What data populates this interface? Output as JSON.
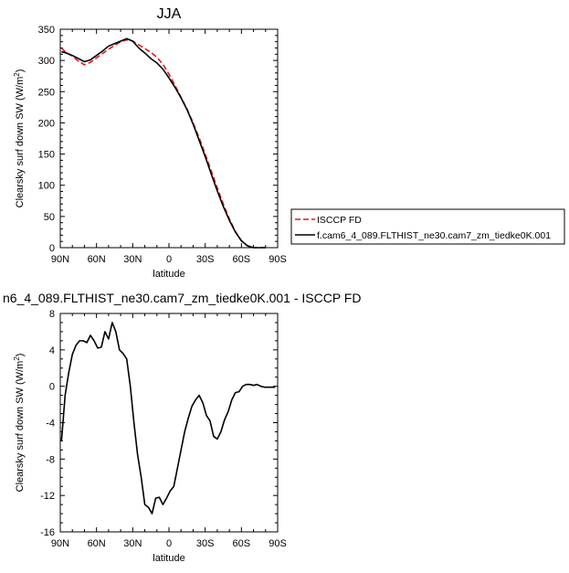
{
  "chart_data": [
    {
      "type": "line",
      "title": "JJA",
      "xlabel": "latitude",
      "ylabel": "Clearsky surf down SW (W/m",
      "ylabel_sup": "2",
      "ylabel_end": ")",
      "xlim": [
        90,
        -90
      ],
      "ylim": [
        0,
        350
      ],
      "x_ticks": [
        90,
        60,
        30,
        0,
        -30,
        -60,
        -90
      ],
      "x_tick_labels": [
        "90N",
        "60N",
        "30N",
        "0",
        "30S",
        "60S",
        "90S"
      ],
      "y_ticks": [
        0,
        50,
        100,
        150,
        200,
        250,
        300,
        350
      ],
      "y_tick_labels": [
        "0",
        "50",
        "100",
        "150",
        "200",
        "250",
        "300",
        "350"
      ],
      "grid": false,
      "legend": "right",
      "series": [
        {
          "name": "ISCCP FD",
          "color": "#e8141c",
          "dash": true,
          "x": [
            89,
            85,
            80,
            75,
            70,
            65,
            60,
            55,
            50,
            45,
            40,
            35,
            30,
            25,
            20,
            15,
            10,
            5,
            0,
            -5,
            -10,
            -15,
            -20,
            -25,
            -30,
            -35,
            -40,
            -45,
            -50,
            -55,
            -60,
            -65,
            -70,
            -75,
            -80
          ],
          "y": [
            320,
            312,
            307,
            299,
            293,
            297,
            304,
            311,
            318,
            324,
            330,
            333,
            331,
            325,
            319,
            313,
            305,
            294,
            278,
            260,
            241,
            222,
            200,
            176,
            150,
            123,
            96,
            70,
            46,
            26,
            11,
            3,
            0,
            0,
            0
          ]
        },
        {
          "name": "f.cam6_4_089.FLTHIST_ne30.cam7_zm_tiedke0K.001",
          "color": "#000000",
          "dash": false,
          "x": [
            89,
            85,
            80,
            75,
            70,
            65,
            60,
            55,
            50,
            45,
            40,
            35,
            30,
            25,
            20,
            15,
            10,
            5,
            0,
            -5,
            -10,
            -15,
            -20,
            -25,
            -30,
            -35,
            -40,
            -45,
            -50,
            -55,
            -60,
            -65,
            -70,
            -75,
            -80
          ],
          "y": [
            314,
            312,
            308,
            303,
            298,
            301,
            308,
            315,
            323,
            327,
            331,
            335,
            331,
            320,
            312,
            303,
            296,
            286,
            272,
            257,
            240,
            221,
            198,
            172,
            146,
            118,
            91,
            66,
            44,
            25,
            11,
            3,
            0,
            0,
            0
          ]
        }
      ]
    },
    {
      "type": "line",
      "title": "n6_4_089.FLTHIST_ne30.cam7_zm_tiedke0K.001 - ISCCP FD",
      "xlabel": "latitude",
      "ylabel": "Clearsky surf down SW (W/m",
      "ylabel_sup": "2",
      "ylabel_end": ")",
      "xlim": [
        90,
        -90
      ],
      "ylim": [
        -16,
        8
      ],
      "x_ticks": [
        90,
        60,
        30,
        0,
        -30,
        -60,
        -90
      ],
      "x_tick_labels": [
        "90N",
        "60N",
        "30N",
        "0",
        "30S",
        "60S",
        "90S"
      ],
      "y_ticks": [
        -16,
        -12,
        -8,
        -4,
        0,
        4,
        8
      ],
      "y_tick_labels": [
        "-16",
        "-12",
        "-8",
        "-4",
        "0",
        "4",
        "8"
      ],
      "grid": false,
      "series": [
        {
          "name": "",
          "color": "#000000",
          "dash": false,
          "x": [
            89,
            86,
            83,
            80,
            77,
            74,
            71,
            68,
            65,
            62,
            59,
            56,
            53,
            50,
            47,
            44,
            41,
            38,
            35,
            32,
            29,
            26,
            23,
            20,
            17,
            14,
            11,
            8,
            5,
            2,
            -1,
            -4,
            -7,
            -10,
            -13,
            -16,
            -19,
            -22,
            -25,
            -28,
            -31,
            -34,
            -37,
            -40,
            -43,
            -46,
            -49,
            -52,
            -55,
            -58,
            -61,
            -64,
            -67,
            -70,
            -73,
            -76,
            -79,
            -82,
            -85,
            -88
          ],
          "y": [
            -6,
            -1,
            1.5,
            3.5,
            4.5,
            5,
            5,
            4.8,
            5.6,
            5,
            4.2,
            4.3,
            6,
            5.2,
            7,
            6,
            4,
            3.6,
            3,
            0,
            -4,
            -7.5,
            -10,
            -13,
            -13.3,
            -14,
            -12.3,
            -12.2,
            -13,
            -12.3,
            -11.5,
            -11,
            -9,
            -7,
            -5,
            -3.5,
            -2.2,
            -1.5,
            -1,
            -1.8,
            -3.2,
            -3.8,
            -5.5,
            -5.8,
            -5,
            -3.7,
            -2.8,
            -1.5,
            -0.7,
            -0.6,
            0,
            0.2,
            0.2,
            0.1,
            0.2,
            0,
            -0.1,
            -0.1,
            -0.1,
            -0.1
          ]
        }
      ]
    }
  ]
}
